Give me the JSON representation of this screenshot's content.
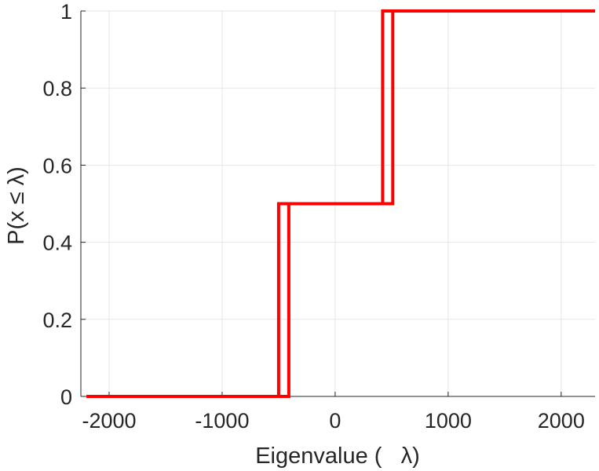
{
  "chart_data": {
    "type": "line",
    "title": "",
    "xlabel": "Eigenvalue (   λ)",
    "ylabel": "P(x ≤ λ)",
    "xlim": [
      -2250,
      2300
    ],
    "ylim": [
      0,
      1
    ],
    "xticks": [
      -2000,
      -1000,
      0,
      1000,
      2000
    ],
    "xtick_labels": [
      "-2000",
      "-1000",
      "0",
      "1000",
      "2000"
    ],
    "yticks": [
      0,
      0.2,
      0.4,
      0.6,
      0.8,
      1
    ],
    "ytick_labels": [
      "0",
      "0.2",
      "0.4",
      "0.6",
      "0.8",
      "1"
    ],
    "grid": true,
    "legend": "none",
    "series": [
      {
        "color": "#ff0000",
        "x": [
          -2200,
          -500,
          -500,
          420,
          420,
          2300
        ],
        "y": [
          0,
          0,
          0.5,
          0.5,
          1,
          1
        ]
      },
      {
        "color": "#ff0000",
        "x": [
          -2200,
          -410,
          -410,
          510,
          510,
          2300
        ],
        "y": [
          0,
          0,
          0.5,
          0.5,
          1,
          1
        ]
      }
    ]
  }
}
